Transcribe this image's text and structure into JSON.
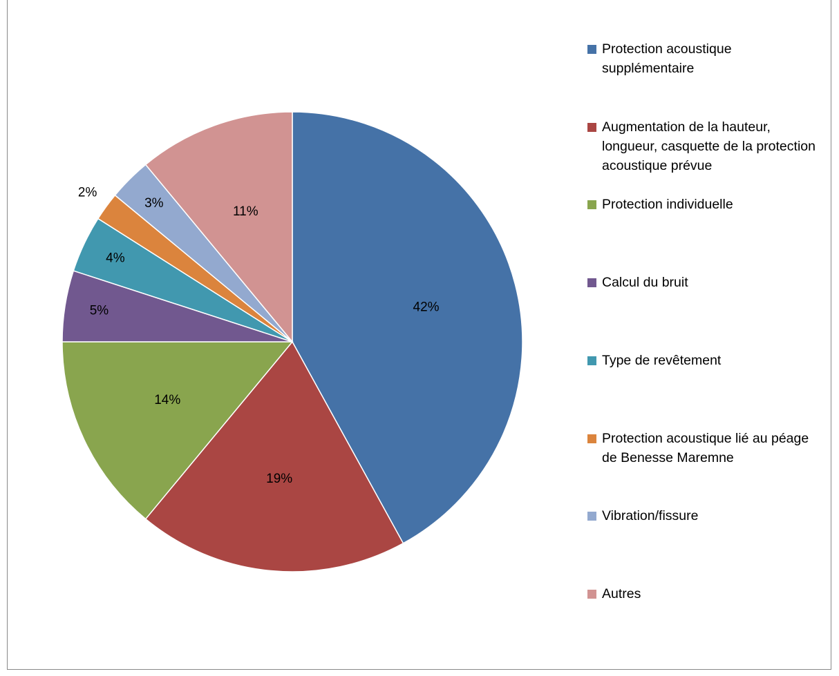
{
  "chart_data": {
    "type": "pie",
    "categories": [
      "Protection acoustique supplémentaire",
      "Augmentation de la hauteur, longueur, casquette de la protection acoustique prévue",
      "Protection individuelle",
      "Calcul du bruit",
      "Type de revêtement",
      "Protection acoustique lié au péage de Benesse Maremne",
      "Vibration/fissure",
      "Autres"
    ],
    "values": [
      42,
      19,
      14,
      5,
      4,
      2,
      3,
      11
    ],
    "value_labels": [
      "42%",
      "19%",
      "14%",
      "5%",
      "4%",
      "2%",
      "3%",
      "11%"
    ],
    "colors": [
      "#4572a7",
      "#aa4643",
      "#89a54e",
      "#71588f",
      "#4198af",
      "#db843d",
      "#93a9cf",
      "#d19392"
    ]
  }
}
